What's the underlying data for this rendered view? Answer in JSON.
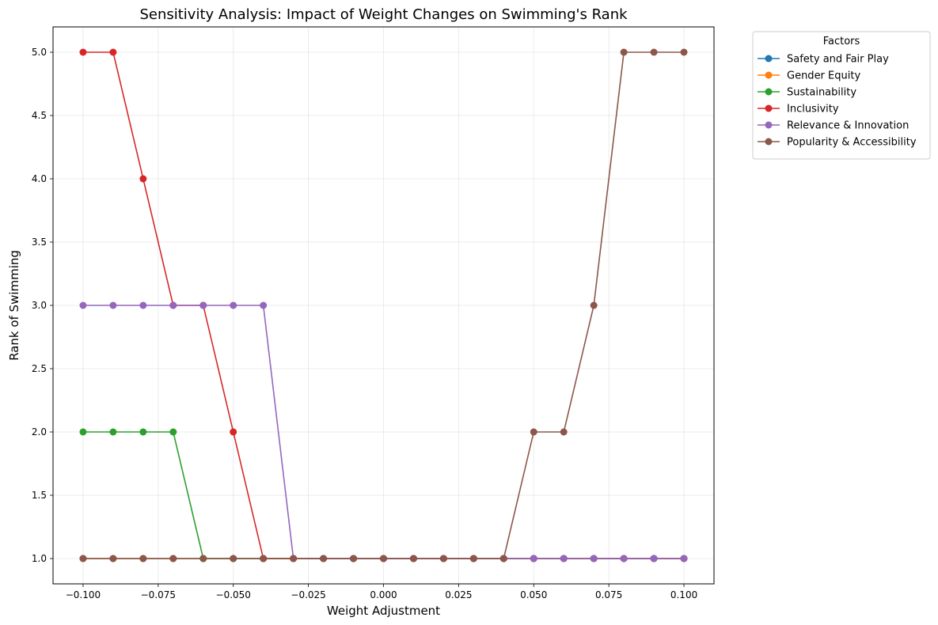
{
  "chart_data": {
    "type": "line",
    "title": "Sensitivity Analysis: Impact of Weight Changes on Swimming's Rank",
    "xlabel": "Weight Adjustment",
    "ylabel": "Rank of Swimming",
    "xlim": [
      -0.11,
      0.11
    ],
    "ylim": [
      0.8,
      5.2
    ],
    "xticks": [
      -0.1,
      -0.075,
      -0.05,
      -0.025,
      0.0,
      0.025,
      0.05,
      0.075,
      0.1
    ],
    "xtick_labels": [
      "−0.100",
      "−0.075",
      "−0.050",
      "−0.025",
      "0.000",
      "0.025",
      "0.050",
      "0.075",
      "0.100"
    ],
    "yticks": [
      1.0,
      1.5,
      2.0,
      2.5,
      3.0,
      3.5,
      4.0,
      4.5,
      5.0
    ],
    "ytick_labels": [
      "1.0",
      "1.5",
      "2.0",
      "2.5",
      "3.0",
      "3.5",
      "4.0",
      "4.5",
      "5.0"
    ],
    "grid": true,
    "legend_title": "Factors",
    "legend_position": "outside-top-right",
    "x": [
      -0.1,
      -0.09,
      -0.08,
      -0.07,
      -0.06,
      -0.05,
      -0.04,
      -0.03,
      -0.02,
      -0.01,
      0.0,
      0.01,
      0.02,
      0.03,
      0.04,
      0.05,
      0.06,
      0.07,
      0.08,
      0.09,
      0.1
    ],
    "series": [
      {
        "name": "Safety and Fair Play",
        "color": "#1f77b4",
        "values": [
          1,
          1,
          1,
          1,
          1,
          1,
          1,
          1,
          1,
          1,
          1,
          1,
          1,
          1,
          1,
          1,
          1,
          1,
          1,
          1,
          1
        ]
      },
      {
        "name": "Gender Equity",
        "color": "#ff7f0e",
        "values": [
          1,
          1,
          1,
          1,
          1,
          1,
          1,
          1,
          1,
          1,
          1,
          1,
          1,
          1,
          1,
          1,
          1,
          1,
          1,
          1,
          1
        ]
      },
      {
        "name": "Sustainability",
        "color": "#2ca02c",
        "values": [
          2,
          2,
          2,
          2,
          1,
          1,
          1,
          1,
          1,
          1,
          1,
          1,
          1,
          1,
          1,
          1,
          1,
          1,
          1,
          1,
          1
        ]
      },
      {
        "name": "Inclusivity",
        "color": "#d62728",
        "values": [
          5,
          5,
          4,
          3,
          3,
          2,
          1,
          1,
          1,
          1,
          1,
          1,
          1,
          1,
          1,
          1,
          1,
          1,
          1,
          1,
          1
        ]
      },
      {
        "name": "Relevance & Innovation",
        "color": "#9467bd",
        "values": [
          3,
          3,
          3,
          3,
          3,
          3,
          3,
          1,
          1,
          1,
          1,
          1,
          1,
          1,
          1,
          1,
          1,
          1,
          1,
          1,
          1
        ]
      },
      {
        "name": "Popularity & Accessibility",
        "color": "#8c564b",
        "values": [
          1,
          1,
          1,
          1,
          1,
          1,
          1,
          1,
          1,
          1,
          1,
          1,
          1,
          1,
          1,
          2,
          2,
          3,
          5,
          5,
          5
        ]
      }
    ]
  }
}
